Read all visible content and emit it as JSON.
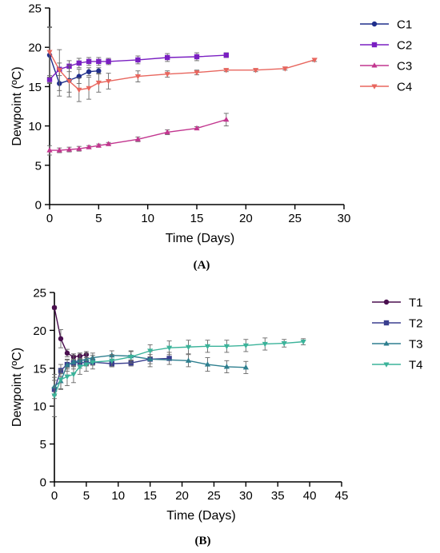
{
  "chart_data": [
    {
      "panel_label": "(A)",
      "type": "line",
      "xlabel": "Time (Days)",
      "ylabel": "Dewpoint (ºC)",
      "xlim": [
        0,
        30
      ],
      "ylim": [
        0,
        25
      ],
      "xticks": [
        0,
        5,
        10,
        15,
        20,
        25,
        30
      ],
      "yticks": [
        0,
        5,
        10,
        15,
        20,
        25
      ],
      "grid": false,
      "legend": "right",
      "series": [
        {
          "name": "C1",
          "color": "#1f2e8c",
          "marker": "circle",
          "x": [
            0,
            1,
            2,
            3,
            4,
            5
          ],
          "y": [
            19.0,
            15.4,
            15.8,
            16.3,
            16.9,
            17.0
          ],
          "err": [
            3.5,
            1.6,
            1.5,
            0.9,
            0.5,
            0.4
          ]
        },
        {
          "name": "C2",
          "color": "#7a1fc2",
          "marker": "square",
          "x": [
            0,
            1,
            2,
            3,
            4,
            5,
            6,
            9,
            12,
            15,
            18
          ],
          "y": [
            15.9,
            17.2,
            17.6,
            18.0,
            18.2,
            18.2,
            18.2,
            18.4,
            18.7,
            18.8,
            19.0
          ],
          "err": [
            0.5,
            0.8,
            0.7,
            0.6,
            0.5,
            0.5,
            0.4,
            0.5,
            0.5,
            0.5,
            0.3
          ]
        },
        {
          "name": "C3",
          "color": "#c2368f",
          "marker": "triangle-up",
          "x": [
            0,
            1,
            2,
            3,
            4,
            5,
            6,
            9,
            12,
            15,
            18
          ],
          "y": [
            6.9,
            6.9,
            7.0,
            7.1,
            7.3,
            7.5,
            7.7,
            8.3,
            9.2,
            9.7,
            10.8
          ],
          "err": [
            0.6,
            0.3,
            0.3,
            0.3,
            0.2,
            0.2,
            0.2,
            0.3,
            0.3,
            0.2,
            0.8
          ]
        },
        {
          "name": "C4",
          "color": "#e8665e",
          "marker": "triangle-down",
          "x": [
            0,
            1,
            2,
            3,
            4,
            5,
            6,
            9,
            12,
            15,
            18,
            21,
            24,
            27
          ],
          "y": [
            19.4,
            17.1,
            15.7,
            14.6,
            14.8,
            15.5,
            15.7,
            16.3,
            16.6,
            16.8,
            17.1,
            17.1,
            17.3,
            18.4
          ],
          "err": [
            3.2,
            2.6,
            2.0,
            1.5,
            1.4,
            1.2,
            1.0,
            0.7,
            0.4,
            0.3,
            0.2,
            0.2,
            0.2,
            0.2
          ]
        }
      ]
    },
    {
      "panel_label": "(B)",
      "type": "line",
      "xlabel": "Time (Days)",
      "ylabel": "Dewpoint (ºC)",
      "xlim": [
        0,
        45
      ],
      "ylim": [
        0,
        25
      ],
      "xticks": [
        0,
        5,
        10,
        15,
        20,
        25,
        30,
        35,
        40,
        45
      ],
      "yticks": [
        0,
        5,
        10,
        15,
        20,
        25
      ],
      "grid": false,
      "legend": "right",
      "series": [
        {
          "name": "T1",
          "color": "#4a0f4f",
          "marker": "circle",
          "x": [
            0,
            1,
            2,
            3,
            4,
            5
          ],
          "y": [
            23.0,
            18.9,
            17.0,
            16.5,
            16.6,
            16.8
          ],
          "err": [
            0.2,
            1.2,
            0.5,
            0.4,
            0.4,
            0.4
          ]
        },
        {
          "name": "T2",
          "color": "#3b3f8f",
          "marker": "square",
          "x": [
            0,
            1,
            2,
            3,
            4,
            5,
            6,
            9,
            12,
            15,
            18
          ],
          "y": [
            12.2,
            14.7,
            15.5,
            15.7,
            15.8,
            15.7,
            15.8,
            15.6,
            15.7,
            16.2,
            16.3
          ],
          "err": [
            1.2,
            0.8,
            0.6,
            0.5,
            0.5,
            0.4,
            0.4,
            0.4,
            0.4,
            1.0,
            0.8
          ]
        },
        {
          "name": "T3",
          "color": "#2e7f8f",
          "marker": "triangle-up",
          "x": [
            0,
            1,
            2,
            3,
            4,
            5,
            6,
            9,
            12,
            15,
            21,
            24,
            27,
            30
          ],
          "y": [
            12.6,
            13.3,
            15.4,
            15.8,
            16.0,
            16.2,
            16.4,
            16.7,
            16.6,
            16.2,
            16.0,
            15.5,
            15.2,
            15.1
          ],
          "err": [
            1.2,
            1.0,
            0.8,
            0.9,
            1.0,
            0.8,
            0.6,
            0.6,
            0.6,
            0.6,
            0.8,
            0.9,
            0.8,
            0.8
          ]
        },
        {
          "name": "T4",
          "color": "#3bb39a",
          "marker": "triangle-down",
          "x": [
            0,
            1,
            2,
            3,
            4,
            5,
            6,
            9,
            12,
            15,
            18,
            21,
            24,
            27,
            30,
            33,
            36,
            39
          ],
          "y": [
            11.4,
            13.5,
            13.9,
            14.2,
            15.2,
            15.5,
            15.8,
            16.0,
            16.5,
            17.3,
            17.7,
            17.8,
            17.9,
            17.9,
            18.0,
            18.2,
            18.3,
            18.5
          ],
          "err": [
            2.8,
            1.3,
            1.2,
            1.1,
            1.0,
            0.9,
            0.9,
            0.8,
            0.8,
            0.8,
            0.9,
            0.9,
            0.8,
            0.8,
            0.8,
            0.8,
            0.5,
            0.4
          ]
        }
      ]
    }
  ]
}
